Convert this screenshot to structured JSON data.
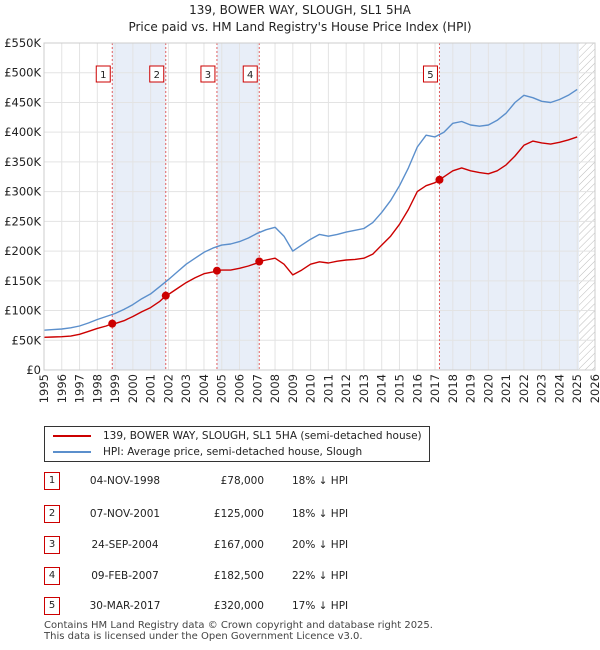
{
  "chart_data": {
    "type": "line",
    "title": "139, BOWER WAY, SLOUGH, SL1 5HA",
    "subtitle": "Price paid vs. HM Land Registry's House Price Index (HPI)",
    "xlim": [
      1995,
      2026
    ],
    "ylim": [
      0,
      550000
    ],
    "x_ticks": [
      "1995",
      "1996",
      "1997",
      "1998",
      "1999",
      "2000",
      "2001",
      "2002",
      "2003",
      "2004",
      "2005",
      "2006",
      "2007",
      "2008",
      "2009",
      "2010",
      "2011",
      "2012",
      "2013",
      "2014",
      "2015",
      "2016",
      "2017",
      "2018",
      "2019",
      "2020",
      "2021",
      "2022",
      "2023",
      "2024",
      "2025",
      "2026"
    ],
    "y_ticks": [
      {
        "value": 0,
        "label": "£0"
      },
      {
        "value": 50000,
        "label": "£50K"
      },
      {
        "value": 100000,
        "label": "£100K"
      },
      {
        "value": 150000,
        "label": "£150K"
      },
      {
        "value": 200000,
        "label": "£200K"
      },
      {
        "value": 250000,
        "label": "£250K"
      },
      {
        "value": 300000,
        "label": "£300K"
      },
      {
        "value": 350000,
        "label": "£350K"
      },
      {
        "value": 400000,
        "label": "£400K"
      },
      {
        "value": 450000,
        "label": "£450K"
      },
      {
        "value": 500000,
        "label": "£500K"
      },
      {
        "value": 550000,
        "label": "£550K"
      }
    ],
    "grid": true,
    "future_hatch_from": 2025.1,
    "series": [
      {
        "name": "139, BOWER WAY, SLOUGH, SL1 5HA (semi-detached house)",
        "color": "#cc0000",
        "x": [
          1995.0,
          1995.5,
          1996.0,
          1996.5,
          1997.0,
          1997.5,
          1998.0,
          1998.5,
          1998.84,
          1999.0,
          1999.5,
          2000.0,
          2000.5,
          2001.0,
          2001.5,
          2001.85,
          2002.0,
          2002.5,
          2003.0,
          2003.5,
          2004.0,
          2004.5,
          2004.73,
          2005.0,
          2005.5,
          2006.0,
          2006.5,
          2007.0,
          2007.11,
          2007.5,
          2008.0,
          2008.5,
          2009.0,
          2009.5,
          2010.0,
          2010.5,
          2011.0,
          2011.5,
          2012.0,
          2012.5,
          2013.0,
          2013.5,
          2014.0,
          2014.5,
          2015.0,
          2015.5,
          2016.0,
          2016.5,
          2017.0,
          2017.25,
          2017.5,
          2018.0,
          2018.5,
          2019.0,
          2019.5,
          2020.0,
          2020.5,
          2021.0,
          2021.5,
          2022.0,
          2022.5,
          2023.0,
          2023.5,
          2024.0,
          2024.5,
          2025.0
        ],
        "y": [
          55000,
          55500,
          56000,
          57000,
          60000,
          65000,
          70000,
          74000,
          78000,
          78000,
          83000,
          90000,
          98000,
          105000,
          115000,
          125000,
          127000,
          137000,
          147000,
          155000,
          162000,
          165000,
          167000,
          168000,
          168000,
          171000,
          175000,
          180000,
          182500,
          185000,
          188000,
          178000,
          160000,
          168000,
          178000,
          182000,
          180000,
          183000,
          185000,
          186000,
          188000,
          195000,
          210000,
          225000,
          245000,
          270000,
          300000,
          310000,
          315000,
          320000,
          325000,
          335000,
          340000,
          335000,
          332000,
          330000,
          335000,
          345000,
          360000,
          378000,
          385000,
          382000,
          380000,
          383000,
          387000,
          392000
        ]
      },
      {
        "name": "HPI: Average price, semi-detached house, Slough",
        "color": "#5b8fcc",
        "x": [
          1995.0,
          1995.5,
          1996.0,
          1996.5,
          1997.0,
          1997.5,
          1998.0,
          1998.5,
          1999.0,
          1999.5,
          2000.0,
          2000.5,
          2001.0,
          2001.5,
          2002.0,
          2002.5,
          2003.0,
          2003.5,
          2004.0,
          2004.5,
          2005.0,
          2005.5,
          2006.0,
          2006.5,
          2007.0,
          2007.5,
          2008.0,
          2008.5,
          2009.0,
          2009.5,
          2010.0,
          2010.5,
          2011.0,
          2011.5,
          2012.0,
          2012.5,
          2013.0,
          2013.5,
          2014.0,
          2014.5,
          2015.0,
          2015.5,
          2016.0,
          2016.5,
          2017.0,
          2017.5,
          2018.0,
          2018.5,
          2019.0,
          2019.5,
          2020.0,
          2020.5,
          2021.0,
          2021.5,
          2022.0,
          2022.5,
          2023.0,
          2023.5,
          2024.0,
          2024.5,
          2025.0
        ],
        "y": [
          67000,
          68000,
          69000,
          71000,
          74000,
          79000,
          85000,
          90000,
          95000,
          102000,
          110000,
          120000,
          128000,
          140000,
          152000,
          165000,
          178000,
          188000,
          198000,
          205000,
          210000,
          212000,
          216000,
          222000,
          230000,
          236000,
          240000,
          225000,
          200000,
          210000,
          220000,
          228000,
          225000,
          228000,
          232000,
          235000,
          238000,
          248000,
          265000,
          285000,
          310000,
          340000,
          375000,
          395000,
          392000,
          400000,
          415000,
          418000,
          412000,
          410000,
          412000,
          420000,
          432000,
          450000,
          462000,
          458000,
          452000,
          450000,
          455000,
          462000,
          472000
        ]
      }
    ],
    "events": [
      {
        "label": "1",
        "x": 1998.84,
        "price": 78000
      },
      {
        "label": "2",
        "x": 2001.85,
        "price": 125000
      },
      {
        "label": "3",
        "x": 2004.73,
        "price": 167000
      },
      {
        "label": "4",
        "x": 2007.11,
        "price": 182500
      },
      {
        "label": "5",
        "x": 2017.25,
        "price": 320000
      }
    ]
  },
  "legend": {
    "entries": [
      {
        "label": "139, BOWER WAY, SLOUGH, SL1 5HA (semi-detached house)",
        "color": "#cc0000"
      },
      {
        "label": "HPI: Average price, semi-detached house, Slough",
        "color": "#5b8fcc"
      }
    ]
  },
  "sales": [
    {
      "num": "1",
      "date": "04-NOV-1998",
      "price": "£78,000",
      "hpi": "18% ↓ HPI"
    },
    {
      "num": "2",
      "date": "07-NOV-2001",
      "price": "£125,000",
      "hpi": "18% ↓ HPI"
    },
    {
      "num": "3",
      "date": "24-SEP-2004",
      "price": "£167,000",
      "hpi": "20% ↓ HPI"
    },
    {
      "num": "4",
      "date": "09-FEB-2007",
      "price": "£182,500",
      "hpi": "22% ↓ HPI"
    },
    {
      "num": "5",
      "date": "30-MAR-2017",
      "price": "£320,000",
      "hpi": "17% ↓ HPI"
    }
  ],
  "footer": {
    "line1": "Contains HM Land Registry data © Crown copyright and database right 2025.",
    "line2": "This data is licensed under the Open Government Licence v3.0."
  }
}
